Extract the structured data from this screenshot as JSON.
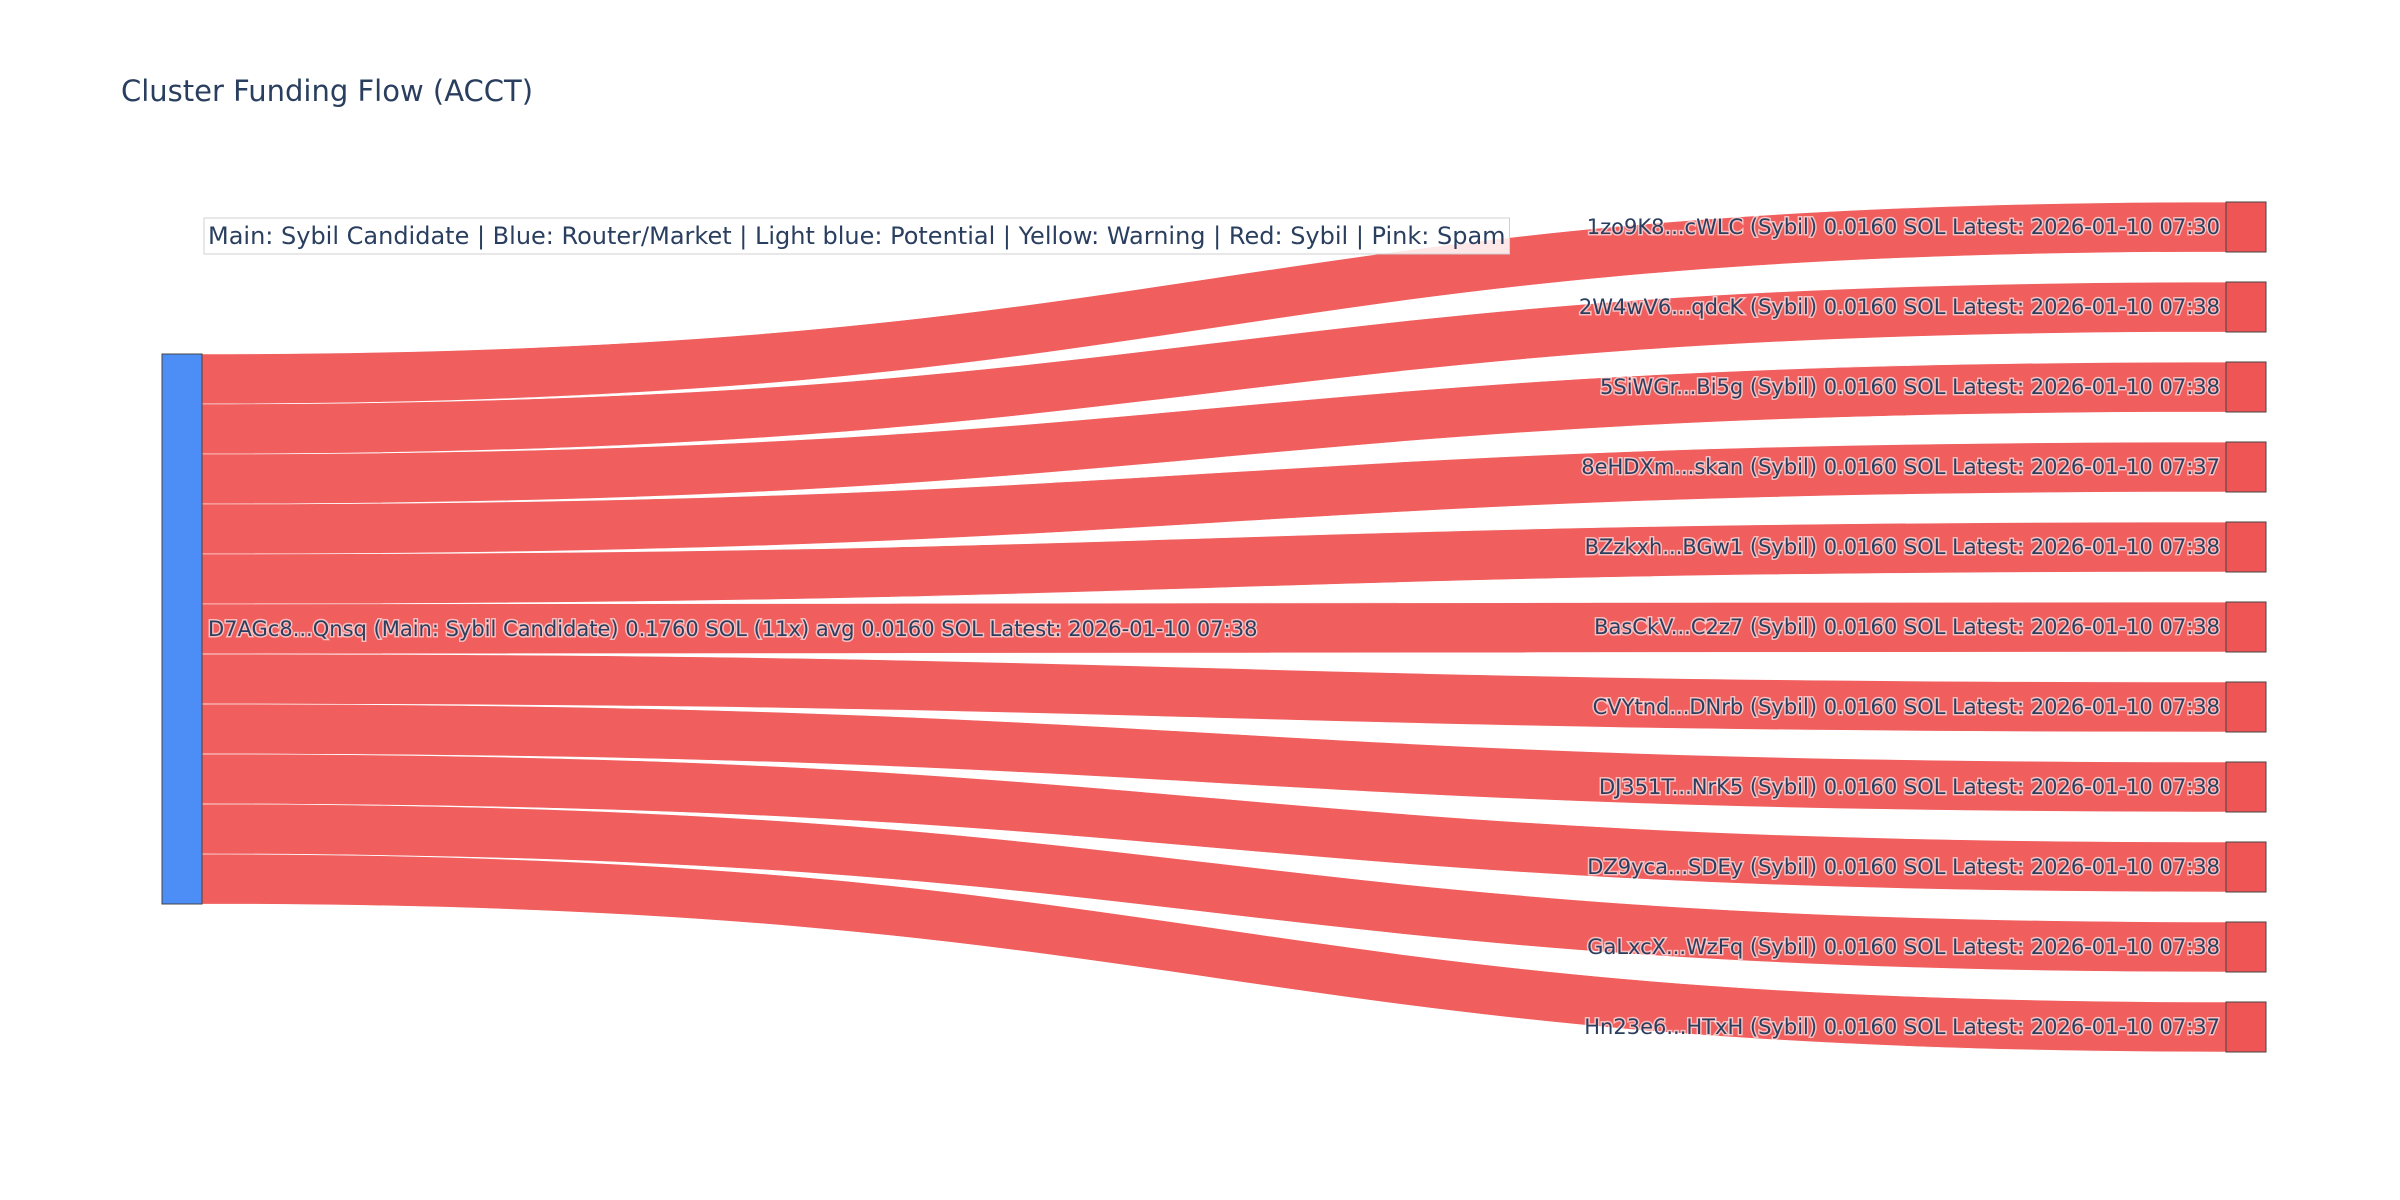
{
  "chart_data": {
    "type": "sankey",
    "title": "Cluster Funding Flow (ACCT)",
    "legend_note": "Main: Sybil Candidate  |  Blue: Router/Market | Light blue: Potential | Yellow: Warning | Red: Sybil | Pink: Spam",
    "colors": {
      "source_node": "#4c8df6",
      "target_node": "#ef5555",
      "link": "#ef5555",
      "node_border": "#444444"
    },
    "source": {
      "label": "D7AGc8...Qnsq (Main: Sybil Candidate) 0.1760 SOL (11x) avg 0.0160 SOL Latest: 2026-01-10 07:38",
      "value": 0.176
    },
    "targets": [
      {
        "label": "1zo9K8...cWLC (Sybil) 0.0160 SOL Latest: 2026-01-10 07:30",
        "value": 0.016
      },
      {
        "label": "2W4wV6...qdcK (Sybil) 0.0160 SOL Latest: 2026-01-10 07:38",
        "value": 0.016
      },
      {
        "label": "5SiWGr...Bi5g (Sybil) 0.0160 SOL Latest: 2026-01-10 07:38",
        "value": 0.016
      },
      {
        "label": "8eHDXm...skan (Sybil) 0.0160 SOL Latest: 2026-01-10 07:37",
        "value": 0.016
      },
      {
        "label": "BZzkxh...BGw1 (Sybil) 0.0160 SOL Latest: 2026-01-10 07:38",
        "value": 0.016
      },
      {
        "label": "BasCkV...C2z7 (Sybil) 0.0160 SOL Latest: 2026-01-10 07:38",
        "value": 0.016
      },
      {
        "label": "CVYtnd...DNrb (Sybil) 0.0160 SOL Latest: 2026-01-10 07:38",
        "value": 0.016
      },
      {
        "label": "DJ351T...NrK5 (Sybil) 0.0160 SOL Latest: 2026-01-10 07:38",
        "value": 0.016
      },
      {
        "label": "DZ9yca...SDEy (Sybil) 0.0160 SOL Latest: 2026-01-10 07:38",
        "value": 0.016
      },
      {
        "label": "GaLxcX...WzFq (Sybil) 0.0160 SOL Latest: 2026-01-10 07:38",
        "value": 0.016
      },
      {
        "label": "Hn23e6...HTxH (Sybil) 0.0160 SOL Latest: 2026-01-10 07:37",
        "value": 0.016
      }
    ]
  }
}
